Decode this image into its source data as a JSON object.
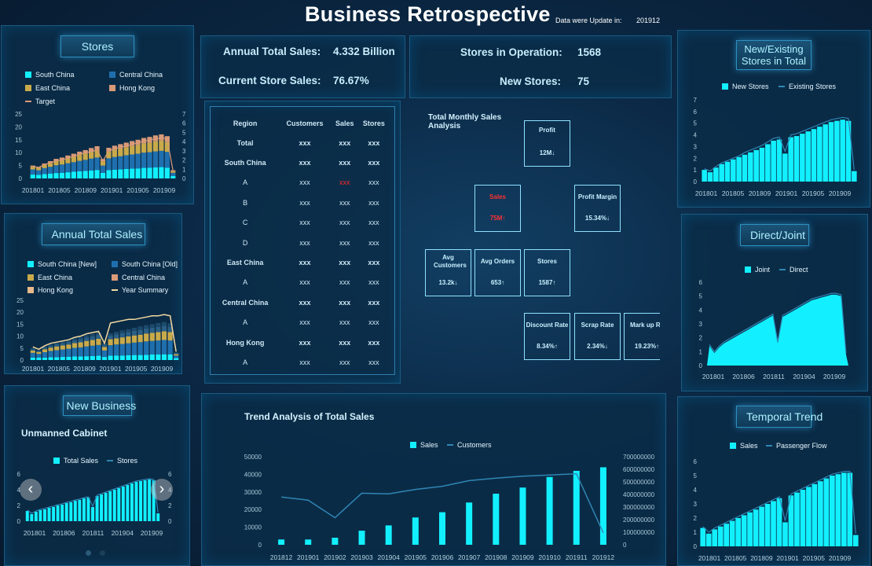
{
  "title": "Business Retrospective",
  "update": {
    "label": "Data were Update in:",
    "value": "201912"
  },
  "kpis": {
    "annual_label": "Annual Total Sales:",
    "annual_value": "4.332 Billion",
    "current_label": "Current Store Sales:",
    "current_value": "76.67%",
    "ops_label": "Stores in Operation:",
    "ops_value": "1568",
    "new_label": "New Stores:",
    "new_value": "75"
  },
  "region_table": {
    "headers": [
      "Region",
      "Customers",
      "Sales",
      "Stores"
    ],
    "rows": [
      [
        "Total",
        "xxx",
        "xxx",
        "xxx"
      ],
      [
        "South China",
        "xxx",
        "xxx",
        "xxx"
      ],
      [
        "A",
        "xxx",
        "xxx",
        "xxx"
      ],
      [
        "B",
        "xxx",
        "xxx",
        "xxx"
      ],
      [
        "C",
        "xxx",
        "xxx",
        "xxx"
      ],
      [
        "D",
        "xxx",
        "xxx",
        "xxx"
      ],
      [
        "East China",
        "xxx",
        "xxx",
        "xxx"
      ],
      [
        "A",
        "xxx",
        "xxx",
        "xxx"
      ],
      [
        "Central China",
        "xxx",
        "xxx",
        "xxx"
      ],
      [
        "A",
        "xxx",
        "xxx",
        "xxx"
      ],
      [
        "Hong Kong",
        "xxx",
        "xxx",
        "xxx"
      ],
      [
        "A",
        "xxx",
        "xxx",
        "xxx"
      ]
    ]
  },
  "monthly_analysis": {
    "title": "Total Monthly Sales Analysis",
    "boxes": {
      "profit": {
        "name": "Profit",
        "value": "12M↓"
      },
      "sales": {
        "name": "Sales",
        "value": "75M↑"
      },
      "profit_margin": {
        "name": "Profit Margin",
        "value": "15.34%↓"
      },
      "avg_customers": {
        "name": "Avg Customers",
        "value": "13.2k↓"
      },
      "avg_orders": {
        "name": "Avg Orders",
        "value": "653↑"
      },
      "stores": {
        "name": "Stores",
        "value": "1587↑"
      },
      "discount_rate": {
        "name": "Discount Rate",
        "value": "8.34%↑"
      },
      "scrap_rate": {
        "name": "Scrap Rate",
        "value": "2.34%↓"
      },
      "markup_rate": {
        "name": "Mark up Ra",
        "value": "19.23%↑"
      }
    }
  },
  "panels": {
    "stores": "Stores",
    "annual_total_sales": "Annual Total Sales",
    "new_business": "New Business",
    "unmanned_cabinet": "Unmanned Cabinet",
    "new_existing": "New/Existing Stores in Total",
    "direct_joint": "Direct/Joint",
    "temporal_trend": "Temporal Trend",
    "trend_analysis": "Trend Analysis of Total Sales"
  },
  "colors": {
    "cyan": "#12f0ff",
    "blue": "#1f6fae",
    "gold": "#c9aa4a",
    "peach": "#d99a78",
    "line": "#2f86b5",
    "yearline": "#f3d9a0"
  },
  "chart_data": [
    {
      "id": "stores",
      "type": "bar",
      "stacked": true,
      "legend": [
        "South China",
        "Central China",
        "East China",
        "Hong Kong",
        "Target"
      ],
      "x_ticks": [
        "201801",
        "201805",
        "201809",
        "201901",
        "201905",
        "201909"
      ],
      "ylim": [
        0,
        25
      ],
      "y_ticks": [
        0,
        5,
        10,
        15,
        20,
        25
      ],
      "y2lim": [
        0,
        7
      ],
      "y2_ticks": [
        0,
        1,
        2,
        3,
        4,
        5,
        6,
        7
      ],
      "series": [
        {
          "name": "South China",
          "values": [
            1.5,
            1.4,
            1.7,
            1.9,
            2.1,
            2.2,
            2.4,
            2.6,
            2.8,
            2.9,
            3.1,
            3.3,
            2.2,
            3.2,
            3.4,
            3.5,
            3.7,
            3.8,
            3.9,
            4.1,
            4.2,
            4.3,
            4.4,
            4.2,
            1.0
          ]
        },
        {
          "name": "Central China",
          "values": [
            2.0,
            1.8,
            2.3,
            2.6,
            3.0,
            3.2,
            3.5,
            3.7,
            4.0,
            4.3,
            4.6,
            4.8,
            2.8,
            4.6,
            4.9,
            5.1,
            5.3,
            5.5,
            5.7,
            5.9,
            6.0,
            6.2,
            6.3,
            6.1,
            1.2
          ]
        },
        {
          "name": "East China",
          "values": [
            1.0,
            0.9,
            1.2,
            1.4,
            1.6,
            1.7,
            1.9,
            2.1,
            2.3,
            2.4,
            2.6,
            2.8,
            1.6,
            2.6,
            2.8,
            3.0,
            3.1,
            3.3,
            3.4,
            3.6,
            3.7,
            3.9,
            4.0,
            3.8,
            0.6
          ]
        },
        {
          "name": "Hong Kong",
          "values": [
            0.5,
            0.4,
            0.6,
            0.8,
            0.9,
            1.0,
            1.1,
            1.2,
            1.3,
            1.4,
            1.5,
            1.6,
            0.9,
            1.5,
            1.6,
            1.7,
            1.8,
            1.9,
            2.0,
            2.1,
            2.2,
            2.3,
            2.4,
            2.3,
            0.4
          ]
        }
      ],
      "line": {
        "name": "Target",
        "values": [
          1.3,
          1.2,
          1.5,
          1.7,
          1.9,
          2.0,
          2.2,
          2.4,
          2.6,
          2.8,
          2.9,
          3.1,
          1.9,
          3.0,
          3.2,
          3.4,
          3.5,
          3.7,
          3.9,
          4.0,
          4.2,
          4.3,
          4.4,
          4.3,
          0.8
        ]
      }
    },
    {
      "id": "annual",
      "type": "bar",
      "stacked": true,
      "legend": [
        "South China [New]",
        "South China [Old]",
        "East China",
        "Central China",
        "Hong Kong",
        "Year Summary"
      ],
      "x_ticks": [
        "201801",
        "201805",
        "201809",
        "201901",
        "201905",
        "201909"
      ],
      "ylim": [
        0,
        25
      ],
      "y_ticks": [
        0,
        5,
        10,
        15,
        20,
        25
      ],
      "series": [
        {
          "name": "South China [New]",
          "values": [
            1,
            1,
            1,
            1.2,
            1.2,
            1.3,
            1.4,
            1.5,
            1.5,
            1.6,
            1.7,
            1.8,
            1.3,
            1.8,
            1.9,
            1.9,
            2,
            2.1,
            2.1,
            2.2,
            2.3,
            2.3,
            2.4,
            2.4,
            0.8
          ]
        },
        {
          "name": "South China [Old]",
          "values": [
            2,
            1.6,
            2.3,
            2.6,
            2.9,
            3.1,
            3.3,
            3.6,
            3.8,
            4.1,
            4.3,
            4.5,
            2.7,
            4.4,
            4.6,
            4.8,
            5,
            5.2,
            5.4,
            5.6,
            5.7,
            5.9,
            6,
            5.8,
            1.1
          ]
        },
        {
          "name": "East China",
          "values": [
            1,
            0.8,
            1.2,
            1.4,
            1.6,
            1.7,
            1.8,
            2,
            2.1,
            2.3,
            2.4,
            2.6,
            1.5,
            2.5,
            2.6,
            2.8,
            2.9,
            3,
            3.1,
            3.3,
            3.4,
            3.5,
            3.6,
            3.5,
            0.6
          ]
        },
        {
          "name": "Central China",
          "values": [
            0.6,
            0.5,
            0.7,
            0.8,
            0.9,
            1,
            1.1,
            1.2,
            1.3,
            1.4,
            1.5,
            1.6,
            0.9,
            1.5,
            1.6,
            1.7,
            1.8,
            1.9,
            2,
            2.1,
            2.1,
            2.2,
            2.3,
            2.2,
            0.4
          ]
        },
        {
          "name": "Hong Kong",
          "values": [
            0.4,
            0.3,
            0.5,
            0.6,
            0.6,
            0.7,
            0.7,
            0.8,
            0.9,
            1,
            1,
            1.1,
            0.6,
            1,
            1.1,
            1.2,
            1.2,
            1.3,
            1.4,
            1.4,
            1.5,
            1.6,
            1.6,
            1.5,
            0.3
          ]
        }
      ],
      "line": {
        "name": "Year Summary",
        "values": [
          5.5,
          4.5,
          6,
          7,
          7.5,
          8,
          8.5,
          9.5,
          10,
          11,
          11.5,
          12,
          7,
          15.5,
          16,
          16.5,
          17,
          17,
          17.5,
          18,
          18.5,
          18.5,
          19,
          18.5,
          3.5
        ]
      }
    },
    {
      "id": "unmanned",
      "type": "bar",
      "legend": [
        "Total Sales",
        "Stores"
      ],
      "x_ticks": [
        "201801",
        "201806",
        "201811",
        "201904",
        "201909"
      ],
      "ylim": [
        0,
        6
      ],
      "y_ticks": [
        0,
        2,
        4,
        6
      ],
      "y2lim": [
        0,
        6
      ],
      "y2_ticks": [
        0,
        2,
        4,
        6
      ],
      "values": [
        1.3,
        0.9,
        1.2,
        1.4,
        1.5,
        1.7,
        1.8,
        2.0,
        2.1,
        2.3,
        2.4,
        2.6,
        2.7,
        2.9,
        3.0,
        1.8,
        3.2,
        3.4,
        3.6,
        3.8,
        4.0,
        4.2,
        4.4,
        4.6,
        4.8,
        5.0,
        5.1,
        5.2,
        5.3,
        5.2,
        1.0
      ],
      "line": {
        "name": "Stores",
        "values": [
          1.4,
          1.0,
          1.3,
          1.5,
          1.6,
          1.8,
          1.9,
          2.1,
          2.2,
          2.4,
          2.5,
          2.7,
          2.8,
          3.0,
          3.1,
          1.9,
          3.3,
          3.5,
          3.7,
          3.9,
          4.1,
          4.3,
          4.5,
          4.7,
          4.9,
          5.1,
          5.2,
          5.3,
          5.4,
          5.3,
          1.1
        ]
      }
    },
    {
      "id": "new_existing",
      "type": "bar",
      "legend": [
        "New Stores",
        "Existing Stores"
      ],
      "x_ticks": [
        "201801",
        "201805",
        "201809",
        "201901",
        "201905",
        "201909"
      ],
      "ylim": [
        0,
        7
      ],
      "y_ticks": [
        0,
        1,
        2,
        3,
        4,
        5,
        6,
        7
      ],
      "values": [
        1.0,
        0.8,
        1.2,
        1.5,
        1.7,
        1.9,
        2.1,
        2.3,
        2.5,
        2.7,
        2.9,
        3.2,
        3.5,
        3.6,
        2.4,
        3.8,
        3.9,
        4.1,
        4.3,
        4.5,
        4.7,
        4.9,
        5.1,
        5.2,
        5.3,
        5.2,
        0.9
      ],
      "line": {
        "name": "Existing Stores",
        "values": [
          1.1,
          0.9,
          1.3,
          1.6,
          1.8,
          2.0,
          2.2,
          2.5,
          2.7,
          2.9,
          3.1,
          3.4,
          3.7,
          3.8,
          2.6,
          4.0,
          4.1,
          4.3,
          4.5,
          4.7,
          4.9,
          5.1,
          5.3,
          5.4,
          5.5,
          5.4,
          1.0
        ]
      }
    },
    {
      "id": "direct_joint",
      "type": "area",
      "legend": [
        "Joint",
        "Direct"
      ],
      "x_ticks": [
        "201801",
        "201806",
        "201811",
        "201904",
        "201909"
      ],
      "ylim": [
        0,
        6
      ],
      "y_ticks": [
        0,
        1,
        2,
        3,
        4,
        5,
        6
      ],
      "values": [
        1.4,
        0.9,
        1.3,
        1.6,
        1.8,
        2.0,
        2.2,
        2.4,
        2.6,
        2.8,
        3.0,
        3.2,
        3.4,
        3.6,
        1.6,
        3.5,
        3.7,
        3.9,
        4.1,
        4.3,
        4.5,
        4.7,
        4.8,
        4.9,
        5.0,
        5.1,
        5.1,
        5.0,
        0.8
      ],
      "line": {
        "name": "Direct",
        "values": [
          1.5,
          1.0,
          1.4,
          1.7,
          1.9,
          2.1,
          2.3,
          2.5,
          2.7,
          2.9,
          3.1,
          3.3,
          3.5,
          3.7,
          1.7,
          3.6,
          3.8,
          4.0,
          4.2,
          4.4,
          4.6,
          4.8,
          4.9,
          5.0,
          5.1,
          5.2,
          5.2,
          5.1,
          0.9
        ]
      }
    },
    {
      "id": "temporal",
      "type": "bar",
      "legend": [
        "Sales",
        "Passenger Flow"
      ],
      "x_ticks": [
        "201801",
        "201805",
        "201809",
        "201901",
        "201905",
        "201909"
      ],
      "ylim": [
        0,
        6
      ],
      "y_ticks": [
        0,
        1,
        2,
        3,
        4,
        5,
        6
      ],
      "values": [
        1.3,
        0.9,
        1.2,
        1.4,
        1.6,
        1.8,
        2.0,
        2.2,
        2.4,
        2.6,
        2.8,
        3.0,
        3.2,
        3.4,
        1.7,
        3.6,
        3.8,
        4.0,
        4.2,
        4.4,
        4.6,
        4.8,
        5.0,
        5.1,
        5.2,
        5.2,
        0.8
      ],
      "line": {
        "name": "Passenger Flow",
        "values": [
          1.4,
          1.0,
          1.3,
          1.5,
          1.7,
          1.9,
          2.1,
          2.3,
          2.5,
          2.7,
          2.9,
          3.1,
          3.3,
          3.5,
          1.8,
          3.7,
          3.9,
          4.1,
          4.3,
          4.5,
          4.7,
          4.9,
          5.1,
          5.2,
          5.3,
          5.3,
          0.9
        ]
      }
    },
    {
      "id": "trend",
      "type": "bar",
      "title": "Trend Analysis of Total Sales",
      "legend": [
        "Sales",
        "Customers"
      ],
      "categories": [
        "201812",
        "201901",
        "201902",
        "201903",
        "201904",
        "201905",
        "201906",
        "201907",
        "201908",
        "201909",
        "201910",
        "201911",
        "201912"
      ],
      "ylim": [
        0,
        50000
      ],
      "y_ticks": [
        0,
        10000,
        20000,
        30000,
        40000,
        50000
      ],
      "y2lim": [
        0,
        700000000
      ],
      "y2_ticks": [
        0,
        100000000,
        200000000,
        300000000,
        400000000,
        500000000,
        600000000,
        700000000
      ],
      "values": [
        3000,
        3000,
        4000,
        8000,
        11000,
        15500,
        18500,
        24000,
        29000,
        32500,
        38500,
        42000,
        44000
      ],
      "line": {
        "name": "Customers",
        "values": [
          380000000,
          355000000,
          215000000,
          410000000,
          405000000,
          440000000,
          465000000,
          510000000,
          530000000,
          545000000,
          555000000,
          565000000,
          95000000
        ]
      }
    }
  ]
}
